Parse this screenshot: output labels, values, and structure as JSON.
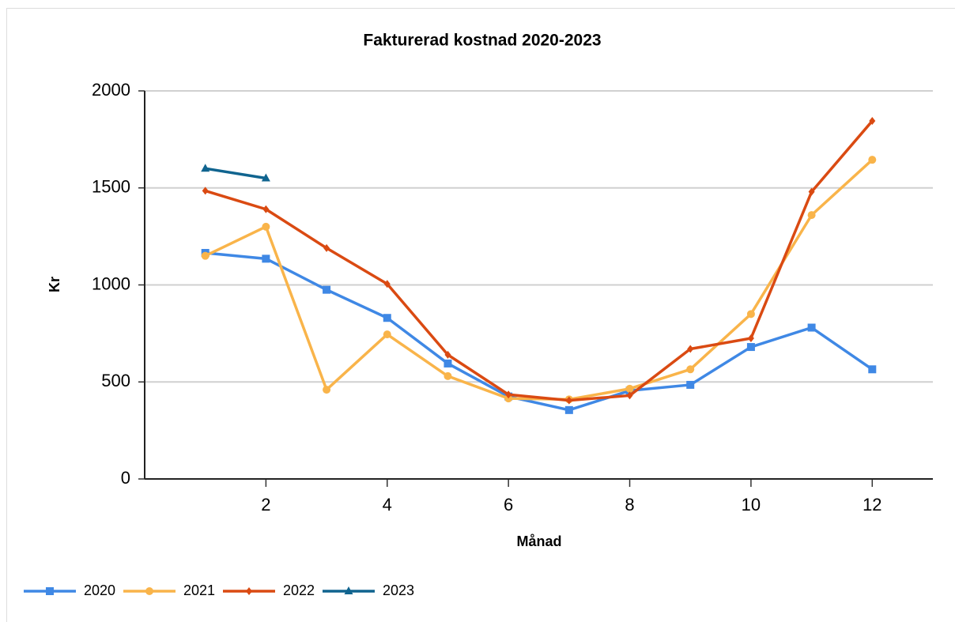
{
  "chart_data": {
    "type": "line",
    "title": "Fakturerad kostnad 2020-2023",
    "xlabel": "Månad",
    "ylabel": "Kr",
    "xlim": [
      0,
      13
    ],
    "xticks": [
      2,
      4,
      6,
      8,
      10,
      12
    ],
    "ylim": [
      0,
      2000
    ],
    "yticks": [
      0,
      500,
      1000,
      1500,
      2000
    ],
    "grid": true,
    "legend": "bottom",
    "x": [
      1,
      2,
      3,
      4,
      5,
      6,
      7,
      8,
      9,
      10,
      11,
      12
    ],
    "series": [
      {
        "name": "2020",
        "color": "#3f88e5",
        "marker": "square",
        "values": [
          1165,
          1135,
          975,
          830,
          595,
          425,
          355,
          455,
          485,
          680,
          780,
          565
        ]
      },
      {
        "name": "2021",
        "color": "#f9b44a",
        "marker": "circle",
        "values": [
          1150,
          1300,
          460,
          745,
          530,
          415,
          410,
          465,
          565,
          850,
          1360,
          1645
        ]
      },
      {
        "name": "2022",
        "color": "#da4a12",
        "marker": "diamond",
        "values": [
          1485,
          1390,
          1190,
          1005,
          640,
          435,
          405,
          430,
          670,
          725,
          1480,
          1845
        ]
      },
      {
        "name": "2023",
        "color": "#10648f",
        "marker": "triangle",
        "values": [
          1600,
          1550,
          null,
          null,
          null,
          null,
          null,
          null,
          null,
          null,
          null,
          null
        ]
      }
    ]
  }
}
